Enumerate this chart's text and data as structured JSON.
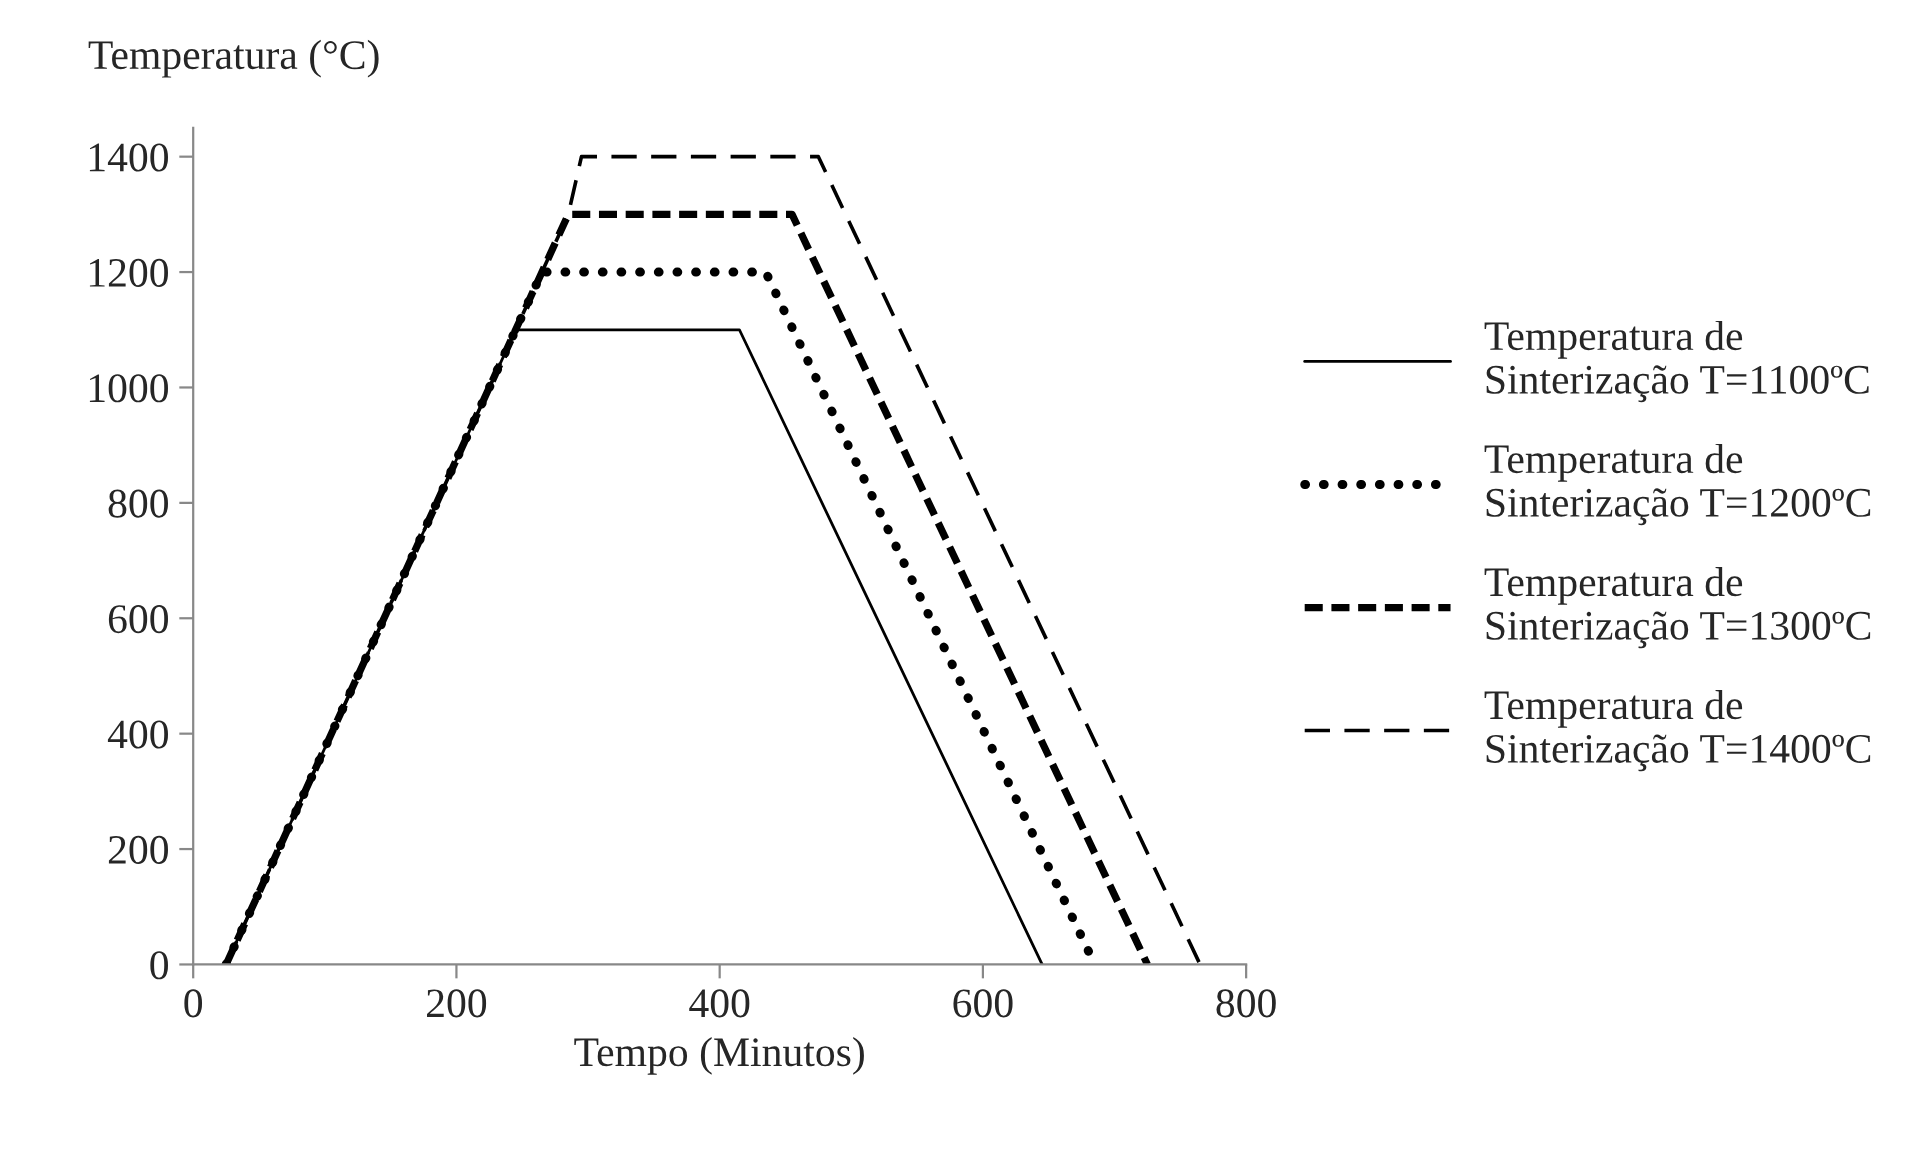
{
  "chart_data": {
    "type": "line",
    "ylabel": "Temperatura (°C)",
    "xlabel": "Tempo (Minutos)",
    "xlim": [
      0,
      800
    ],
    "xticks": [
      0,
      200,
      400,
      600,
      800
    ],
    "ylim": [
      0,
      1450
    ],
    "yticks": [
      0,
      200,
      400,
      600,
      800,
      1000,
      1200,
      1400
    ],
    "grid": false,
    "legend": "right",
    "marker": "none",
    "series": [
      {
        "name": "Temperatura de Sinterização T=1100ºC",
        "color": "#000000",
        "line_style": "solid",
        "x": [
          25,
          245,
          415,
          645
        ],
        "values": [
          0,
          1100,
          1100,
          0
        ]
      },
      {
        "name": "Temperatura de Sinterização T=1200ºC",
        "color": "#000000",
        "line_style": "dotted",
        "x": [
          25,
          265,
          435,
          685
        ],
        "values": [
          0,
          1200,
          1200,
          0
        ]
      },
      {
        "name": "Temperatura de Sinterização T=1300ºC",
        "color": "#000000",
        "line_style": "dashed",
        "x": [
          25,
          285,
          455,
          725
        ],
        "values": [
          0,
          1300,
          1300,
          0
        ]
      },
      {
        "name": "Temperatura de Sinterização T=1400ºC",
        "color": "#000000",
        "line_style": "dashed",
        "x": [
          25,
          285,
          295,
          475,
          765
        ],
        "values": [
          0,
          1300,
          1400,
          1400,
          0
        ]
      }
    ]
  }
}
